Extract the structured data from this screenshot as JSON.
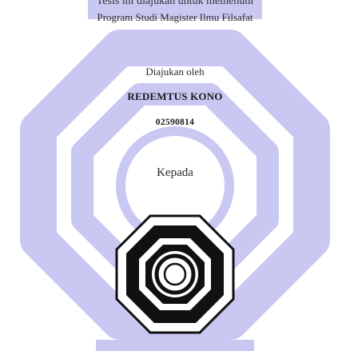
{
  "document": {
    "header_partial": "Tesis ini diajukan untuk memenuhi",
    "program": "Program Studi Magister Ilmu Filsafat",
    "submitted_by_label": "Diajukan oleh",
    "author_name": "REDEMTUS KONO",
    "student_id": "02590814",
    "recipient_label": "Kepada"
  },
  "watermark": {
    "shape": "concentric-octagons",
    "color": "#c9c8f2"
  },
  "logo": {
    "name": "university-emblem",
    "ring_color": "#111111",
    "fill_color": "#ffffff"
  }
}
